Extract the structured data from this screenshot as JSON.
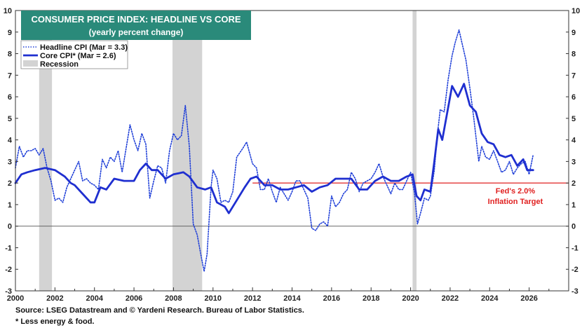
{
  "chart_data": {
    "type": "line",
    "title": "CONSUMER PRICE INDEX: HEADLINE VS CORE",
    "subtitle": "(yearly percent change)",
    "xlim": [
      2000,
      2028
    ],
    "ylim": [
      -3,
      10
    ],
    "x_ticks": [
      "2000",
      "2002",
      "2004",
      "2006",
      "2008",
      "2010",
      "2012",
      "2014",
      "2016",
      "2018",
      "2020",
      "2022",
      "2024",
      "2026"
    ],
    "y_ticks": [
      "-3",
      "-2",
      "-1",
      "0",
      "1",
      "2",
      "3",
      "4",
      "5",
      "6",
      "7",
      "8",
      "9",
      "10"
    ],
    "grid": false,
    "legend_placement": "top-left",
    "series": [
      {
        "name": "Headline CPI  (Mar = 3.3)",
        "style": "dotted",
        "color": "#1f3fd8",
        "points": [
          [
            2000.0,
            2.7
          ],
          [
            2000.2,
            3.7
          ],
          [
            2000.4,
            3.2
          ],
          [
            2000.6,
            3.5
          ],
          [
            2000.8,
            3.5
          ],
          [
            2001.0,
            3.6
          ],
          [
            2001.2,
            3.3
          ],
          [
            2001.4,
            3.6
          ],
          [
            2001.6,
            2.7
          ],
          [
            2001.8,
            2.1
          ],
          [
            2002.0,
            1.2
          ],
          [
            2002.2,
            1.3
          ],
          [
            2002.4,
            1.1
          ],
          [
            2002.6,
            1.8
          ],
          [
            2002.8,
            2.2
          ],
          [
            2003.0,
            2.6
          ],
          [
            2003.2,
            3.0
          ],
          [
            2003.4,
            2.1
          ],
          [
            2003.6,
            2.2
          ],
          [
            2003.8,
            2.0
          ],
          [
            2004.0,
            1.9
          ],
          [
            2004.2,
            1.7
          ],
          [
            2004.4,
            3.1
          ],
          [
            2004.6,
            2.7
          ],
          [
            2004.8,
            3.2
          ],
          [
            2005.0,
            3.0
          ],
          [
            2005.2,
            3.5
          ],
          [
            2005.4,
            2.5
          ],
          [
            2005.6,
            3.6
          ],
          [
            2005.8,
            4.7
          ],
          [
            2006.0,
            4.0
          ],
          [
            2006.2,
            3.5
          ],
          [
            2006.4,
            4.3
          ],
          [
            2006.6,
            3.8
          ],
          [
            2006.8,
            1.3
          ],
          [
            2007.0,
            2.1
          ],
          [
            2007.2,
            2.8
          ],
          [
            2007.4,
            2.7
          ],
          [
            2007.6,
            2.0
          ],
          [
            2007.8,
            3.5
          ],
          [
            2008.0,
            4.3
          ],
          [
            2008.2,
            4.0
          ],
          [
            2008.4,
            4.2
          ],
          [
            2008.6,
            5.6
          ],
          [
            2008.8,
            3.7
          ],
          [
            2009.0,
            0.1
          ],
          [
            2009.2,
            -0.4
          ],
          [
            2009.4,
            -1.4
          ],
          [
            2009.55,
            -2.1
          ],
          [
            2009.7,
            -1.3
          ],
          [
            2009.9,
            1.8
          ],
          [
            2010.0,
            2.6
          ],
          [
            2010.2,
            2.2
          ],
          [
            2010.4,
            1.1
          ],
          [
            2010.6,
            1.2
          ],
          [
            2010.8,
            1.1
          ],
          [
            2011.0,
            1.6
          ],
          [
            2011.2,
            3.2
          ],
          [
            2011.5,
            3.6
          ],
          [
            2011.7,
            3.9
          ],
          [
            2012.0,
            2.9
          ],
          [
            2012.2,
            2.7
          ],
          [
            2012.4,
            1.7
          ],
          [
            2012.6,
            1.7
          ],
          [
            2012.8,
            2.2
          ],
          [
            2013.0,
            1.6
          ],
          [
            2013.2,
            1.1
          ],
          [
            2013.4,
            1.8
          ],
          [
            2013.6,
            1.5
          ],
          [
            2013.8,
            1.2
          ],
          [
            2014.0,
            1.6
          ],
          [
            2014.2,
            2.1
          ],
          [
            2014.4,
            2.1
          ],
          [
            2014.6,
            1.7
          ],
          [
            2014.8,
            1.3
          ],
          [
            2015.0,
            -0.1
          ],
          [
            2015.2,
            -0.2
          ],
          [
            2015.4,
            0.1
          ],
          [
            2015.6,
            0.2
          ],
          [
            2015.8,
            0.0
          ],
          [
            2016.0,
            1.4
          ],
          [
            2016.2,
            0.9
          ],
          [
            2016.4,
            1.1
          ],
          [
            2016.6,
            1.5
          ],
          [
            2016.8,
            1.7
          ],
          [
            2017.0,
            2.5
          ],
          [
            2017.2,
            2.2
          ],
          [
            2017.4,
            1.6
          ],
          [
            2017.6,
            2.0
          ],
          [
            2017.8,
            2.1
          ],
          [
            2018.0,
            2.2
          ],
          [
            2018.2,
            2.5
          ],
          [
            2018.4,
            2.9
          ],
          [
            2018.6,
            2.3
          ],
          [
            2018.8,
            1.9
          ],
          [
            2019.0,
            1.5
          ],
          [
            2019.2,
            2.0
          ],
          [
            2019.4,
            1.7
          ],
          [
            2019.6,
            1.7
          ],
          [
            2019.8,
            2.1
          ],
          [
            2020.0,
            2.5
          ],
          [
            2020.2,
            1.5
          ],
          [
            2020.35,
            0.1
          ],
          [
            2020.5,
            0.6
          ],
          [
            2020.7,
            1.3
          ],
          [
            2020.9,
            1.2
          ],
          [
            2021.0,
            1.4
          ],
          [
            2021.2,
            2.6
          ],
          [
            2021.35,
            4.2
          ],
          [
            2021.5,
            5.4
          ],
          [
            2021.7,
            5.3
          ],
          [
            2021.9,
            6.8
          ],
          [
            2022.1,
            7.9
          ],
          [
            2022.25,
            8.5
          ],
          [
            2022.45,
            9.1
          ],
          [
            2022.6,
            8.5
          ],
          [
            2022.8,
            7.7
          ],
          [
            2023.0,
            6.4
          ],
          [
            2023.2,
            5.0
          ],
          [
            2023.45,
            3.0
          ],
          [
            2023.6,
            3.7
          ],
          [
            2023.8,
            3.2
          ],
          [
            2024.0,
            3.1
          ],
          [
            2024.2,
            3.5
          ],
          [
            2024.4,
            3.0
          ],
          [
            2024.6,
            2.5
          ],
          [
            2024.8,
            2.6
          ],
          [
            2025.0,
            3.0
          ],
          [
            2025.2,
            2.4
          ],
          [
            2025.4,
            2.7
          ],
          [
            2025.6,
            2.9
          ],
          [
            2025.8,
            3.0
          ],
          [
            2026.0,
            2.4
          ],
          [
            2026.2,
            3.3
          ]
        ]
      },
      {
        "name": "Core CPI* (Mar = 2.6)",
        "style": "solid",
        "color": "#1f2fd0",
        "points": [
          [
            2000.0,
            2.0
          ],
          [
            2000.3,
            2.4
          ],
          [
            2000.6,
            2.5
          ],
          [
            2001.0,
            2.6
          ],
          [
            2001.5,
            2.7
          ],
          [
            2002.0,
            2.6
          ],
          [
            2002.5,
            2.3
          ],
          [
            2002.8,
            2.0
          ],
          [
            2003.0,
            1.9
          ],
          [
            2003.4,
            1.5
          ],
          [
            2003.8,
            1.1
          ],
          [
            2004.0,
            1.1
          ],
          [
            2004.3,
            1.8
          ],
          [
            2004.6,
            1.7
          ],
          [
            2005.0,
            2.2
          ],
          [
            2005.5,
            2.1
          ],
          [
            2006.0,
            2.1
          ],
          [
            2006.3,
            2.6
          ],
          [
            2006.6,
            2.9
          ],
          [
            2006.9,
            2.6
          ],
          [
            2007.2,
            2.6
          ],
          [
            2007.6,
            2.2
          ],
          [
            2008.0,
            2.4
          ],
          [
            2008.5,
            2.5
          ],
          [
            2008.8,
            2.3
          ],
          [
            2009.2,
            1.8
          ],
          [
            2009.6,
            1.7
          ],
          [
            2009.9,
            1.8
          ],
          [
            2010.2,
            1.1
          ],
          [
            2010.6,
            0.9
          ],
          [
            2010.8,
            0.6
          ],
          [
            2011.2,
            1.2
          ],
          [
            2011.6,
            1.8
          ],
          [
            2011.9,
            2.2
          ],
          [
            2012.2,
            2.3
          ],
          [
            2012.6,
            1.9
          ],
          [
            2013.0,
            1.9
          ],
          [
            2013.4,
            1.7
          ],
          [
            2013.8,
            1.7
          ],
          [
            2014.2,
            1.8
          ],
          [
            2014.6,
            1.9
          ],
          [
            2015.0,
            1.6
          ],
          [
            2015.4,
            1.8
          ],
          [
            2015.8,
            1.9
          ],
          [
            2016.2,
            2.2
          ],
          [
            2016.6,
            2.2
          ],
          [
            2017.0,
            2.2
          ],
          [
            2017.4,
            1.7
          ],
          [
            2017.8,
            1.7
          ],
          [
            2018.2,
            2.1
          ],
          [
            2018.6,
            2.3
          ],
          [
            2019.0,
            2.1
          ],
          [
            2019.4,
            2.1
          ],
          [
            2019.8,
            2.3
          ],
          [
            2020.1,
            2.4
          ],
          [
            2020.3,
            1.4
          ],
          [
            2020.5,
            1.2
          ],
          [
            2020.7,
            1.7
          ],
          [
            2021.0,
            1.6
          ],
          [
            2021.2,
            3.0
          ],
          [
            2021.4,
            4.5
          ],
          [
            2021.6,
            4.0
          ],
          [
            2021.9,
            5.5
          ],
          [
            2022.1,
            6.5
          ],
          [
            2022.4,
            6.0
          ],
          [
            2022.7,
            6.6
          ],
          [
            2023.0,
            5.6
          ],
          [
            2023.3,
            5.3
          ],
          [
            2023.6,
            4.3
          ],
          [
            2023.9,
            3.9
          ],
          [
            2024.2,
            3.8
          ],
          [
            2024.5,
            3.3
          ],
          [
            2024.8,
            3.2
          ],
          [
            2025.1,
            3.3
          ],
          [
            2025.4,
            2.8
          ],
          [
            2025.7,
            3.1
          ],
          [
            2025.9,
            2.6
          ],
          [
            2026.2,
            2.6
          ]
        ]
      }
    ],
    "recessions": [
      [
        2001.2,
        2001.85
      ],
      [
        2007.95,
        2009.45
      ],
      [
        2020.1,
        2020.3
      ]
    ],
    "recession_label": "Recession",
    "target_line": {
      "value": 2.0,
      "color": "#e02020",
      "label_line1": "Fed's 2.0%",
      "label_line2": "Inflation Target"
    }
  },
  "footer": {
    "source": "Source: LSEG Datastream and © Yardeni Research. Bureau of Labor Statistics.",
    "note": "* Less energy & food."
  },
  "colors": {
    "title_bg": "#2a8a7a",
    "recession": "#d3d3d3",
    "axis": "#333333"
  }
}
